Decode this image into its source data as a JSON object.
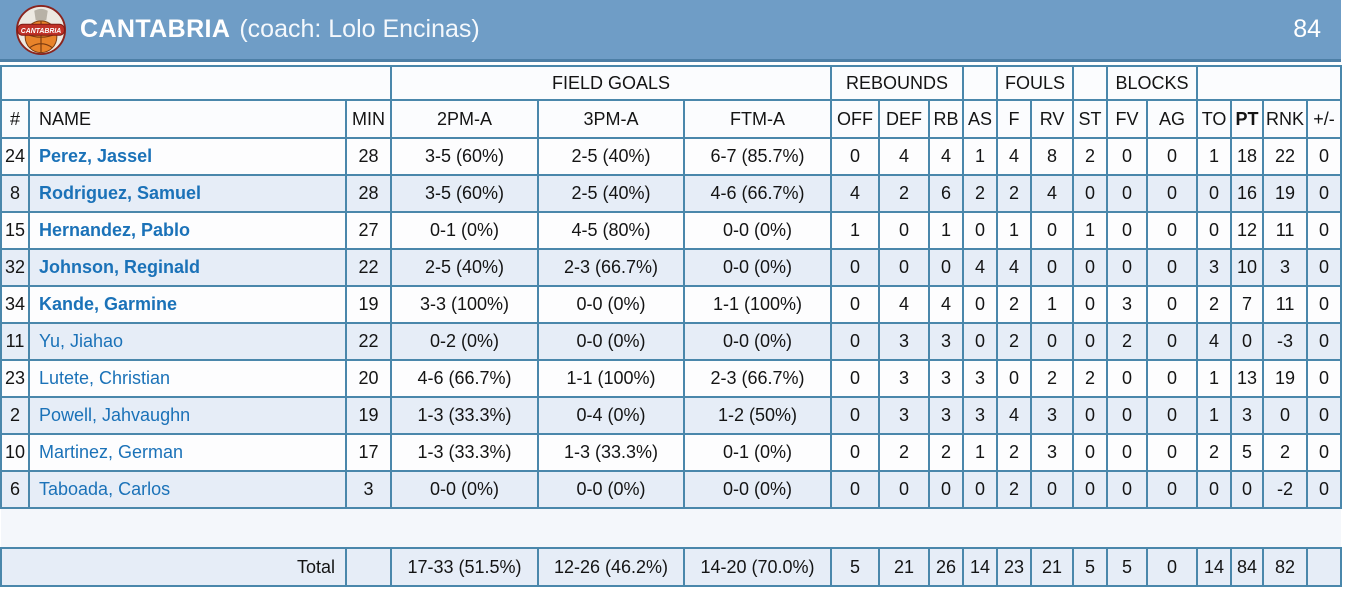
{
  "header": {
    "team_name": "CANTABRIA",
    "coach": "(coach: Lolo Encinas)",
    "score": "84",
    "logo_text": "CANTABRIA"
  },
  "table": {
    "groups": {
      "field_goals": "FIELD GOALS",
      "rebounds": "REBOUNDS",
      "fouls": "FOULS",
      "blocks": "BLOCKS"
    },
    "columns": [
      {
        "key": "num",
        "label": "#"
      },
      {
        "key": "name",
        "label": "NAME"
      },
      {
        "key": "min",
        "label": "MIN"
      },
      {
        "key": "fg2",
        "label": "2PM-A"
      },
      {
        "key": "fg3",
        "label": "3PM-A"
      },
      {
        "key": "ft",
        "label": "FTM-A"
      },
      {
        "key": "off",
        "label": "OFF"
      },
      {
        "key": "def",
        "label": "DEF"
      },
      {
        "key": "rb",
        "label": "RB"
      },
      {
        "key": "as",
        "label": "AS"
      },
      {
        "key": "f",
        "label": "F"
      },
      {
        "key": "rv",
        "label": "RV"
      },
      {
        "key": "st",
        "label": "ST"
      },
      {
        "key": "fv",
        "label": "FV"
      },
      {
        "key": "ag",
        "label": "AG"
      },
      {
        "key": "to",
        "label": "TO"
      },
      {
        "key": "pt",
        "label": "PT",
        "bold": true
      },
      {
        "key": "rnk",
        "label": "RNK"
      },
      {
        "key": "plusminus",
        "label": "+/-"
      }
    ],
    "stat_keys": [
      "off",
      "def",
      "rb",
      "as",
      "f",
      "rv",
      "st",
      "fv",
      "ag",
      "to",
      "pt",
      "rnk",
      "plusminus"
    ],
    "players": [
      {
        "num": "24",
        "name": "Perez, Jassel",
        "starter": true,
        "min": "28",
        "fg2": "3-5 (60%)",
        "fg3": "2-5 (40%)",
        "ft": "6-7 (85.7%)",
        "stats": [
          "0",
          "4",
          "4",
          "1",
          "4",
          "8",
          "2",
          "0",
          "0",
          "1",
          "18",
          "22",
          "0"
        ]
      },
      {
        "num": "8",
        "name": "Rodriguez, Samuel",
        "starter": true,
        "min": "28",
        "fg2": "3-5 (60%)",
        "fg3": "2-5 (40%)",
        "ft": "4-6 (66.7%)",
        "stats": [
          "4",
          "2",
          "6",
          "2",
          "2",
          "4",
          "0",
          "0",
          "0",
          "0",
          "16",
          "19",
          "0"
        ]
      },
      {
        "num": "15",
        "name": "Hernandez, Pablo",
        "starter": true,
        "min": "27",
        "fg2": "0-1 (0%)",
        "fg3": "4-5 (80%)",
        "ft": "0-0 (0%)",
        "stats": [
          "1",
          "0",
          "1",
          "0",
          "1",
          "0",
          "1",
          "0",
          "0",
          "0",
          "12",
          "11",
          "0"
        ]
      },
      {
        "num": "32",
        "name": "Johnson, Reginald",
        "starter": true,
        "min": "22",
        "fg2": "2-5 (40%)",
        "fg3": "2-3 (66.7%)",
        "ft": "0-0 (0%)",
        "stats": [
          "0",
          "0",
          "0",
          "4",
          "4",
          "0",
          "0",
          "0",
          "0",
          "3",
          "10",
          "3",
          "0"
        ]
      },
      {
        "num": "34",
        "name": "Kande, Garmine",
        "starter": true,
        "min": "19",
        "fg2": "3-3 (100%)",
        "fg3": "0-0 (0%)",
        "ft": "1-1 (100%)",
        "stats": [
          "0",
          "4",
          "4",
          "0",
          "2",
          "1",
          "0",
          "3",
          "0",
          "2",
          "7",
          "11",
          "0"
        ]
      },
      {
        "num": "11",
        "name": "Yu, Jiahao",
        "starter": false,
        "min": "22",
        "fg2": "0-2 (0%)",
        "fg3": "0-0 (0%)",
        "ft": "0-0 (0%)",
        "stats": [
          "0",
          "3",
          "3",
          "0",
          "2",
          "0",
          "0",
          "2",
          "0",
          "4",
          "0",
          "-3",
          "0"
        ]
      },
      {
        "num": "23",
        "name": "Lutete, Christian",
        "starter": false,
        "min": "20",
        "fg2": "4-6 (66.7%)",
        "fg3": "1-1 (100%)",
        "ft": "2-3 (66.7%)",
        "stats": [
          "0",
          "3",
          "3",
          "3",
          "0",
          "2",
          "2",
          "0",
          "0",
          "1",
          "13",
          "19",
          "0"
        ]
      },
      {
        "num": "2",
        "name": "Powell, Jahvaughn",
        "starter": false,
        "min": "19",
        "fg2": "1-3 (33.3%)",
        "fg3": "0-4 (0%)",
        "ft": "1-2 (50%)",
        "stats": [
          "0",
          "3",
          "3",
          "3",
          "4",
          "3",
          "0",
          "0",
          "0",
          "1",
          "3",
          "0",
          "0"
        ]
      },
      {
        "num": "10",
        "name": "Martinez, German",
        "starter": false,
        "min": "17",
        "fg2": "1-3 (33.3%)",
        "fg3": "1-3 (33.3%)",
        "ft": "0-1 (0%)",
        "stats": [
          "0",
          "2",
          "2",
          "1",
          "2",
          "3",
          "0",
          "0",
          "0",
          "2",
          "5",
          "2",
          "0"
        ]
      },
      {
        "num": "6",
        "name": "Taboada, Carlos",
        "starter": false,
        "min": "3",
        "fg2": "0-0 (0%)",
        "fg3": "0-0 (0%)",
        "ft": "0-0 (0%)",
        "stats": [
          "0",
          "0",
          "0",
          "0",
          "2",
          "0",
          "0",
          "0",
          "0",
          "0",
          "0",
          "-2",
          "0"
        ]
      }
    ],
    "total": {
      "label": "Total",
      "min": "",
      "fg2": "17-33 (51.5%)",
      "fg3": "12-26 (46.2%)",
      "ft": "14-20 (70.0%)",
      "stats": [
        "5",
        "21",
        "26",
        "14",
        "23",
        "21",
        "5",
        "5",
        "0",
        "14",
        "84",
        "82",
        ""
      ]
    }
  },
  "colors": {
    "header_bg": "#6f9dc6",
    "header_border": "#4d7fa6",
    "table_border": "#4a87ab",
    "row_bg": "#fdfdfe",
    "row_alt_bg": "#e6edf7",
    "header_row_bg": "#fbfcfe",
    "spacer_bg": "#f4f7fb",
    "player_link": "#1b72b8",
    "logo_red": "#c03127",
    "logo_orange": "#e8832a"
  }
}
